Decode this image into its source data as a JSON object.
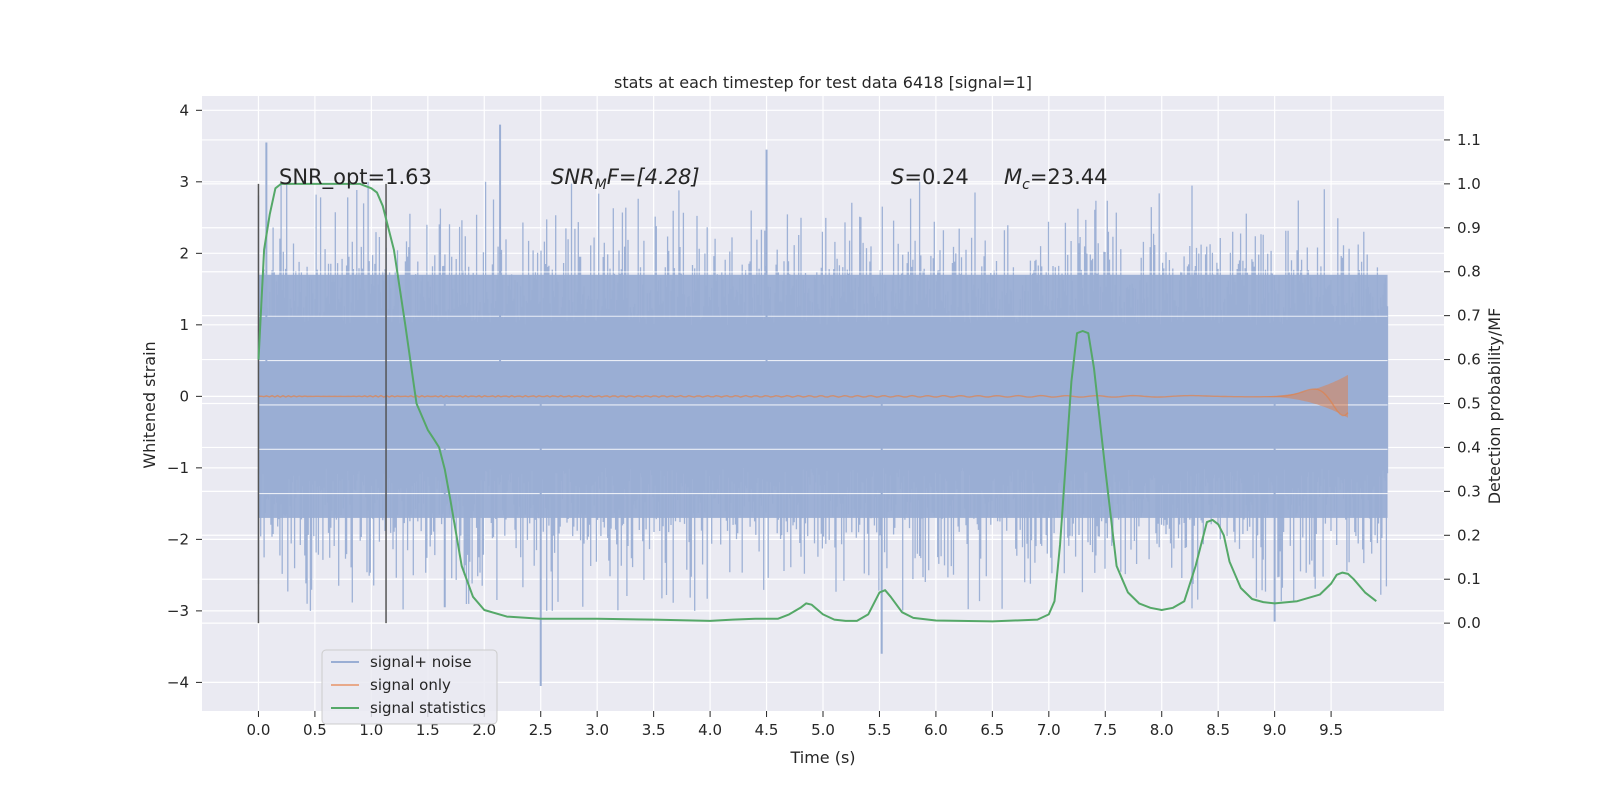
{
  "chart_data": {
    "type": "line",
    "title": "stats at each timestep for test data 6418 [signal=1]",
    "xlabel": "Time (s)",
    "ylabel_left": "Whitened strain",
    "ylabel_right": "Detection probability/MF",
    "xlim": [
      -0.5,
      10.5
    ],
    "ylim_left": [
      -4.4,
      4.2
    ],
    "ylim_right": [
      -0.2,
      1.2
    ],
    "x_ticks": [
      "0.0",
      "0.5",
      "1.0",
      "1.5",
      "2.0",
      "2.5",
      "3.0",
      "3.5",
      "4.0",
      "4.5",
      "5.0",
      "5.5",
      "6.0",
      "6.5",
      "7.0",
      "7.5",
      "8.0",
      "8.5",
      "9.0",
      "9.5"
    ],
    "y_left_ticks": [
      "−4",
      "−3",
      "−2",
      "−1",
      "0",
      "1",
      "2",
      "3",
      "4"
    ],
    "y_right_ticks": [
      "0.0",
      "0.1",
      "0.2",
      "0.3",
      "0.4",
      "0.5",
      "0.6",
      "0.7",
      "0.8",
      "0.9",
      "1.0",
      "1.1"
    ],
    "grid": true,
    "legend_position": "lower-left",
    "annotations": {
      "snr_opt": "SNR_opt=1.63",
      "snr_mf_prefix": "SNR",
      "snr_mf_sub": "M",
      "snr_mf_suffix": "F=[4.28]",
      "s_var": "S",
      "s_value": "=0.24",
      "mc_var": "M",
      "mc_sub": "c",
      "mc_value": "=23.44"
    },
    "vertical_markers": [
      0.0,
      1.13
    ],
    "series": [
      {
        "name": "signal+ noise",
        "color": "#9aaed4",
        "x_range": [
          0.0,
          10.0
        ],
        "band_envelope_y": [
          -1.7,
          1.7
        ],
        "notable_peaks": [
          [
            0.07,
            3.55
          ],
          [
            2.14,
            3.8
          ],
          [
            4.5,
            3.45
          ],
          [
            2.5,
            -4.05
          ],
          [
            5.52,
            -3.6
          ],
          [
            9.0,
            -3.15
          ],
          [
            1.65,
            -2.95
          ]
        ]
      },
      {
        "name": "signal only",
        "color": "#dd8452",
        "x_range": [
          0.0,
          9.65
        ],
        "chirp_end_amplitude": 0.3
      },
      {
        "name": "signal statistics",
        "color": "#55a868",
        "axis": "right",
        "x": [
          0.0,
          0.05,
          0.1,
          0.15,
          0.2,
          0.3,
          0.5,
          0.7,
          0.9,
          1.0,
          1.05,
          1.1,
          1.15,
          1.2,
          1.3,
          1.4,
          1.5,
          1.55,
          1.6,
          1.65,
          1.7,
          1.8,
          1.9,
          2.0,
          2.2,
          2.5,
          3.0,
          3.5,
          4.0,
          4.2,
          4.4,
          4.6,
          4.7,
          4.8,
          4.85,
          4.9,
          5.0,
          5.1,
          5.2,
          5.3,
          5.4,
          5.5,
          5.55,
          5.6,
          5.7,
          5.8,
          6.0,
          6.5,
          6.9,
          7.0,
          7.05,
          7.1,
          7.2,
          7.25,
          7.3,
          7.35,
          7.4,
          7.5,
          7.6,
          7.65,
          7.7,
          7.8,
          7.9,
          8.0,
          8.1,
          8.2,
          8.3,
          8.35,
          8.4,
          8.45,
          8.5,
          8.55,
          8.6,
          8.7,
          8.8,
          8.9,
          9.0,
          9.2,
          9.4,
          9.5,
          9.55,
          9.6,
          9.65,
          9.7,
          9.8,
          9.9
        ],
        "y": [
          0.6,
          0.85,
          0.93,
          0.99,
          1.0,
          1.0,
          1.0,
          1.0,
          1.0,
          0.99,
          0.98,
          0.95,
          0.9,
          0.85,
          0.68,
          0.5,
          0.44,
          0.42,
          0.4,
          0.35,
          0.28,
          0.13,
          0.06,
          0.03,
          0.015,
          0.01,
          0.01,
          0.008,
          0.005,
          0.008,
          0.01,
          0.01,
          0.02,
          0.035,
          0.045,
          0.042,
          0.02,
          0.008,
          0.005,
          0.005,
          0.02,
          0.07,
          0.075,
          0.06,
          0.025,
          0.012,
          0.006,
          0.004,
          0.008,
          0.02,
          0.05,
          0.18,
          0.55,
          0.66,
          0.665,
          0.66,
          0.58,
          0.35,
          0.13,
          0.1,
          0.07,
          0.045,
          0.035,
          0.03,
          0.035,
          0.05,
          0.13,
          0.18,
          0.23,
          0.235,
          0.225,
          0.2,
          0.14,
          0.08,
          0.055,
          0.048,
          0.045,
          0.05,
          0.065,
          0.09,
          0.11,
          0.115,
          0.112,
          0.1,
          0.07,
          0.05
        ]
      }
    ]
  }
}
